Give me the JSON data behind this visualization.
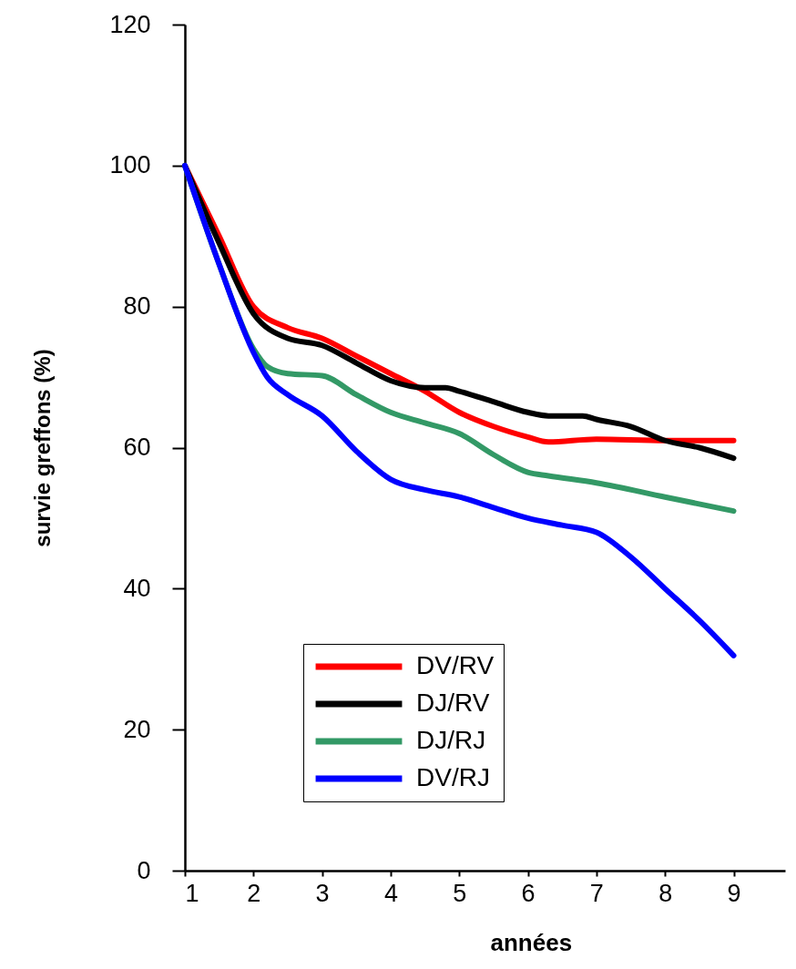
{
  "chart_data": {
    "type": "line",
    "xlabel": "années",
    "ylabel": "survie greffons (%)",
    "xlim": [
      1,
      9.75
    ],
    "xticks": [
      1,
      2,
      3,
      4,
      5,
      6,
      7,
      8,
      9
    ],
    "ylim": [
      0,
      120
    ],
    "yticks": [
      0,
      20,
      40,
      60,
      80,
      100,
      120
    ],
    "grid": false,
    "legend": "bottom",
    "marker": "none",
    "line_style": "solid",
    "series": [
      {
        "name": "DV/RV",
        "color": "#ff0000",
        "x": [
          1,
          1.5,
          2,
          2.5,
          3,
          3.5,
          4,
          4.5,
          5,
          5.5,
          6,
          6.3,
          7,
          8,
          9
        ],
        "values": [
          100,
          90,
          80,
          77,
          75.5,
          73,
          70.5,
          68,
          65,
          63,
          61.5,
          60.8,
          61.2,
          61,
          61
        ]
      },
      {
        "name": "DJ/RV",
        "color": "#000000",
        "x": [
          1,
          1.5,
          2,
          2.5,
          3,
          3.5,
          4,
          4.5,
          4.8,
          5,
          5.5,
          6,
          6.3,
          6.8,
          7,
          7.5,
          8,
          8.5,
          9
        ],
        "values": [
          100,
          89,
          79,
          75.5,
          74.5,
          72,
          69.5,
          68.5,
          68.5,
          68,
          66.5,
          65,
          64.5,
          64.5,
          64,
          63,
          61,
          60,
          58.5
        ]
      },
      {
        "name": "DJ/RJ",
        "color": "#339966",
        "x": [
          1,
          1.5,
          2,
          2.2,
          2.5,
          3,
          3.5,
          4,
          4.5,
          5,
          5.5,
          6,
          6.3,
          7,
          8,
          9
        ],
        "values": [
          100,
          86,
          74,
          71.5,
          70.5,
          70.2,
          67.5,
          65,
          63.5,
          62,
          59,
          56.5,
          56,
          55,
          53,
          51
        ]
      },
      {
        "name": "DV/RJ",
        "color": "#0000ff",
        "x": [
          1,
          1.5,
          2,
          2.2,
          2.5,
          3,
          3.5,
          4,
          4.5,
          5,
          5.5,
          6,
          6.5,
          7,
          7.5,
          8,
          8.5,
          9
        ],
        "values": [
          100,
          86,
          73.5,
          70,
          67.5,
          64.5,
          59.5,
          55.5,
          54,
          53,
          51.5,
          50,
          49,
          48,
          44.5,
          40,
          35.5,
          30.5
        ]
      }
    ]
  }
}
